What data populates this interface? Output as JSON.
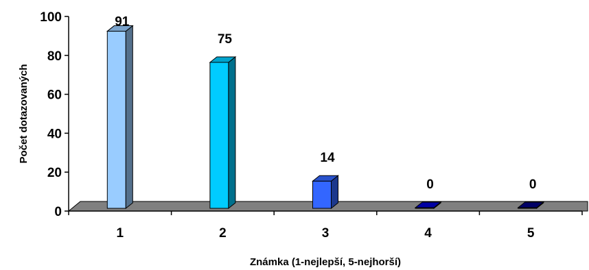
{
  "chart_data": {
    "type": "bar",
    "title": "",
    "categories": [
      "1",
      "2",
      "3",
      "4",
      "5"
    ],
    "values": [
      91,
      75,
      14,
      0,
      0
    ],
    "bar_colors": [
      "#99CCFF",
      "#00CCFF",
      "#3366FF",
      "#0000CC",
      "#000080"
    ],
    "floor_color": "#808080",
    "xlabel": "Známka (1-nejlepší, 5-nejhorší)",
    "ylabel": "Počet dotazovaných",
    "ylim": [
      0,
      100
    ],
    "yticks": [
      "0",
      "20",
      "40",
      "60",
      "80",
      "100"
    ],
    "grid": false,
    "legend": "none",
    "style": "3d-column"
  }
}
